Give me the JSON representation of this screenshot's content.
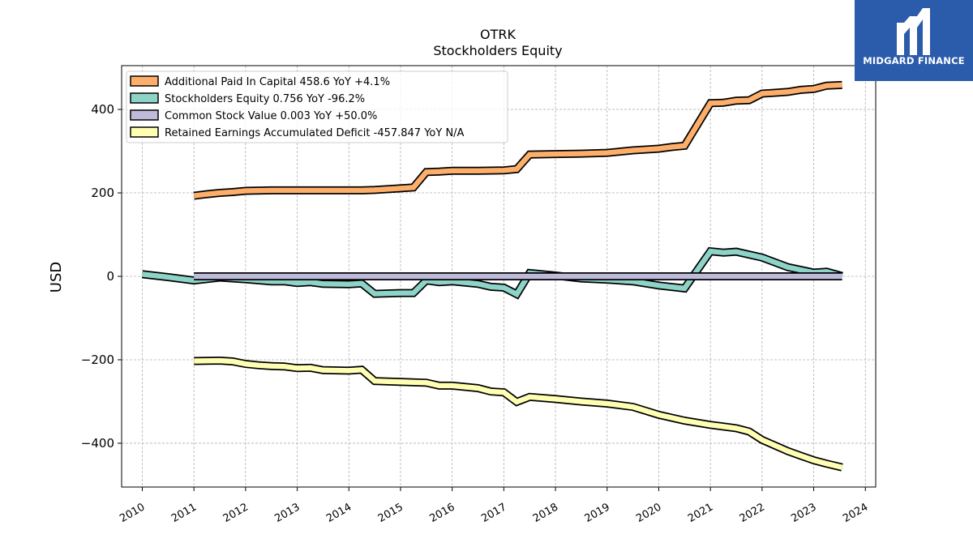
{
  "brand": {
    "name": "MIDGARD FINANCE"
  },
  "colors": {
    "apic": "#fdae6b",
    "equity": "#8dd3c7",
    "common": "#bebada",
    "retained": "#ffffb3",
    "brand_bg": "#2b5bab"
  },
  "chart_data": {
    "type": "line",
    "title": "OTRK",
    "subtitle": "Stockholders  Equity",
    "ylabel": "USD",
    "xlim": [
      2009.6,
      2024.2
    ],
    "ylim": [
      -505,
      505
    ],
    "yticks": [
      -400,
      -200,
      0,
      200,
      400
    ],
    "xticks": [
      2010,
      2011,
      2012,
      2013,
      2014,
      2015,
      2016,
      2017,
      2018,
      2019,
      2020,
      2021,
      2022,
      2023,
      2024
    ],
    "ytick_labels": [
      "−400",
      "−200",
      "0",
      "200",
      "400"
    ],
    "grid": true,
    "legend_position": "upper left",
    "series": [
      {
        "key": "apic",
        "name": "Additional Paid In Capital  458.6 YoY +4.1%",
        "points": [
          [
            2011.0,
            193
          ],
          [
            2011.25,
            197
          ],
          [
            2011.5,
            200
          ],
          [
            2011.75,
            202
          ],
          [
            2012.0,
            205
          ],
          [
            2012.5,
            206
          ],
          [
            2013.0,
            206
          ],
          [
            2013.5,
            206
          ],
          [
            2014.0,
            206
          ],
          [
            2014.25,
            206
          ],
          [
            2014.5,
            207
          ],
          [
            2014.75,
            209
          ],
          [
            2015.0,
            211
          ],
          [
            2015.25,
            213
          ],
          [
            2015.5,
            250
          ],
          [
            2015.75,
            251
          ],
          [
            2016.0,
            253
          ],
          [
            2016.5,
            253
          ],
          [
            2017.0,
            254
          ],
          [
            2017.25,
            257
          ],
          [
            2017.5,
            292
          ],
          [
            2018.0,
            293
          ],
          [
            2018.5,
            294
          ],
          [
            2019.0,
            296
          ],
          [
            2019.5,
            302
          ],
          [
            2020.0,
            306
          ],
          [
            2020.25,
            310
          ],
          [
            2020.5,
            313
          ],
          [
            2021.0,
            415
          ],
          [
            2021.25,
            416
          ],
          [
            2021.5,
            421
          ],
          [
            2021.75,
            422
          ],
          [
            2022.0,
            438
          ],
          [
            2022.25,
            440
          ],
          [
            2022.5,
            442
          ],
          [
            2022.75,
            447
          ],
          [
            2023.0,
            449
          ],
          [
            2023.25,
            457
          ],
          [
            2023.55,
            458.6
          ]
        ]
      },
      {
        "key": "equity",
        "name": "Stockholders Equity  0.756 YoY -96.2%",
        "points": [
          [
            2010.0,
            5
          ],
          [
            2010.5,
            -2
          ],
          [
            2011.0,
            -10
          ],
          [
            2011.5,
            -3
          ],
          [
            2012.0,
            -7
          ],
          [
            2012.5,
            -12
          ],
          [
            2012.75,
            -12
          ],
          [
            2013.0,
            -16
          ],
          [
            2013.25,
            -14
          ],
          [
            2013.5,
            -18
          ],
          [
            2014.0,
            -19
          ],
          [
            2014.25,
            -17
          ],
          [
            2014.5,
            -42
          ],
          [
            2015.0,
            -40
          ],
          [
            2015.25,
            -40
          ],
          [
            2015.5,
            -10
          ],
          [
            2015.75,
            -14
          ],
          [
            2016.0,
            -12
          ],
          [
            2016.5,
            -18
          ],
          [
            2016.75,
            -25
          ],
          [
            2017.0,
            -27
          ],
          [
            2017.25,
            -43
          ],
          [
            2017.5,
            8
          ],
          [
            2018.0,
            2
          ],
          [
            2018.5,
            -5
          ],
          [
            2019.0,
            -8
          ],
          [
            2019.5,
            -12
          ],
          [
            2020.0,
            -22
          ],
          [
            2020.5,
            -29
          ],
          [
            2021.0,
            60
          ],
          [
            2021.25,
            57
          ],
          [
            2021.5,
            59
          ],
          [
            2022.0,
            45
          ],
          [
            2022.5,
            22
          ],
          [
            2023.0,
            9
          ],
          [
            2023.25,
            11
          ],
          [
            2023.55,
            0.756
          ]
        ]
      },
      {
        "key": "common",
        "name": "Common Stock Value  0.003 YoY +50.0%",
        "points": [
          [
            2011.0,
            0.0
          ],
          [
            2012.0,
            0.0
          ],
          [
            2013.0,
            0.0
          ],
          [
            2014.0,
            0.0
          ],
          [
            2015.0,
            0.0
          ],
          [
            2016.0,
            0.0
          ],
          [
            2017.0,
            0.0
          ],
          [
            2018.0,
            0.0
          ],
          [
            2019.0,
            0.0
          ],
          [
            2020.0,
            0.0
          ],
          [
            2021.0,
            0.0
          ],
          [
            2022.0,
            0.0
          ],
          [
            2023.0,
            0.0
          ],
          [
            2023.55,
            0.003
          ]
        ]
      },
      {
        "key": "retained",
        "name": "Retained Earnings Accumulated Deficit  -457.847 YoY N/A",
        "points": [
          [
            2011.0,
            -203
          ],
          [
            2011.5,
            -202
          ],
          [
            2011.75,
            -204
          ],
          [
            2012.0,
            -210
          ],
          [
            2012.25,
            -213
          ],
          [
            2012.5,
            -215
          ],
          [
            2012.75,
            -216
          ],
          [
            2013.0,
            -220
          ],
          [
            2013.25,
            -219
          ],
          [
            2013.5,
            -225
          ],
          [
            2014.0,
            -226
          ],
          [
            2014.25,
            -224
          ],
          [
            2014.5,
            -251
          ],
          [
            2015.0,
            -253
          ],
          [
            2015.5,
            -255
          ],
          [
            2015.75,
            -262
          ],
          [
            2016.0,
            -262
          ],
          [
            2016.5,
            -268
          ],
          [
            2016.75,
            -276
          ],
          [
            2017.0,
            -278
          ],
          [
            2017.25,
            -301
          ],
          [
            2017.5,
            -289
          ],
          [
            2018.0,
            -294
          ],
          [
            2018.5,
            -300
          ],
          [
            2019.0,
            -305
          ],
          [
            2019.5,
            -313
          ],
          [
            2020.0,
            -332
          ],
          [
            2020.5,
            -346
          ],
          [
            2021.0,
            -356
          ],
          [
            2021.5,
            -364
          ],
          [
            2021.75,
            -372
          ],
          [
            2022.0,
            -392
          ],
          [
            2022.5,
            -419
          ],
          [
            2022.75,
            -430
          ],
          [
            2023.0,
            -441
          ],
          [
            2023.25,
            -449
          ],
          [
            2023.55,
            -457.847
          ]
        ]
      }
    ]
  }
}
